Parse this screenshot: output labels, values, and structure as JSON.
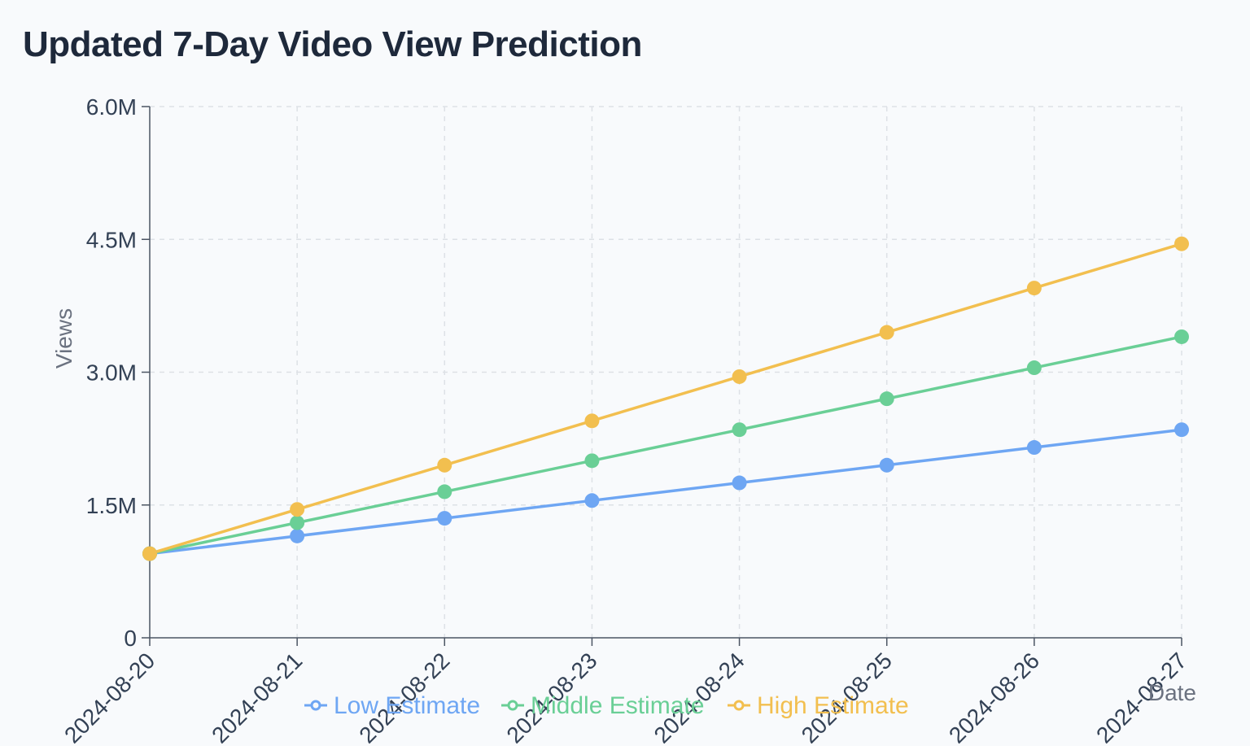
{
  "chart_data": {
    "type": "line",
    "title": "Updated 7-Day Video View Prediction",
    "xlabel": "Date",
    "ylabel": "Views",
    "x": [
      "2024-08-20",
      "2024-08-21",
      "2024-08-22",
      "2024-08-23",
      "2024-08-24",
      "2024-08-25",
      "2024-08-26",
      "2024-08-27"
    ],
    "x_tick_labels": [
      "2024-08-20",
      "2024-08-21",
      "2024-08-22",
      "2024-08-23",
      "2024-08-24",
      "2024-08-25",
      "2024-08-26",
      "2024-08-27"
    ],
    "ylim": [
      0,
      6000000
    ],
    "y_ticks": [
      0,
      1500000,
      3000000,
      4500000,
      6000000
    ],
    "y_tick_labels": [
      "0",
      "1.5M",
      "3.0M",
      "4.5M",
      "6.0M"
    ],
    "grid": true,
    "legend_position": "bottom",
    "series": [
      {
        "name": "Low Estimate",
        "color": "#6ea6f3",
        "values": [
          950000,
          1150000,
          1350000,
          1550000,
          1750000,
          1950000,
          2150000,
          2350000
        ]
      },
      {
        "name": "Middle Estimate",
        "color": "#6acf96",
        "values": [
          950000,
          1300000,
          1650000,
          2000000,
          2350000,
          2700000,
          3050000,
          3400000
        ]
      },
      {
        "name": "High Estimate",
        "color": "#f2bf4f",
        "values": [
          950000,
          1450000,
          1950000,
          2450000,
          2950000,
          3450000,
          3950000,
          4450000
        ]
      }
    ]
  }
}
